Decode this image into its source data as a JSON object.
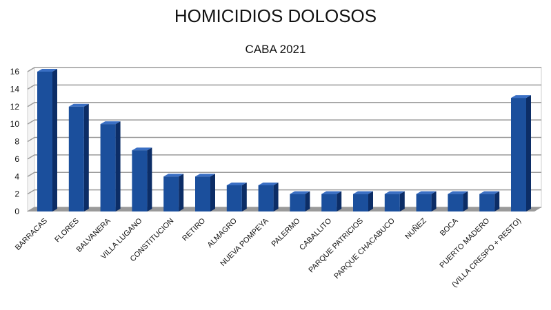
{
  "chart_data": {
    "type": "bar",
    "title": "HOMICIDIOS DOLOSOS",
    "subtitle": "CABA 2021",
    "xlabel": "",
    "ylabel": "",
    "ylim": [
      0,
      16
    ],
    "yticks": [
      "0",
      "2",
      "4",
      "6",
      "8",
      "10",
      "12",
      "14",
      "16"
    ],
    "grid": true,
    "legend": "none",
    "categories": [
      "BARRACAS",
      "FLORES",
      "BALVANERA",
      "VILLA LUGANO",
      "CONSTITUCION",
      "RETIRO",
      "ALMAGRO",
      "NUEVA POMPEYA",
      "PALERMO",
      "CABALLITO",
      "PARQUE PATRICIOS",
      "PARQUE CHACABUCO",
      "NUÑEZ",
      "BOCA",
      "PUERTO MADERO",
      "(VILLA CRESPO + RESTO)"
    ],
    "values": [
      16,
      12,
      10,
      7,
      4,
      4,
      3,
      3,
      2,
      2,
      2,
      2,
      2,
      2,
      2,
      13
    ],
    "colors": {
      "bar_front": "#1b4f9c",
      "bar_side": "#0c2d66",
      "bar_top": "#3a6fc4",
      "floor": "#9a9a9a",
      "wall": "#ffffff",
      "grid": "#9a9a9a"
    }
  }
}
